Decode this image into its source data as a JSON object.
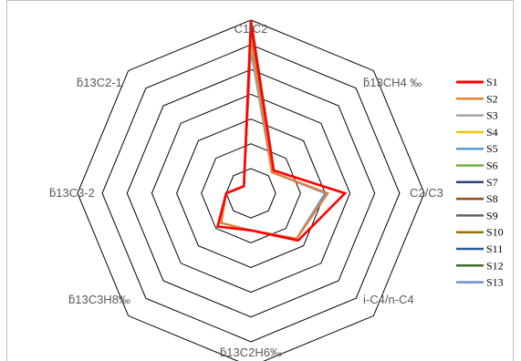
{
  "chart_data": {
    "type": "radar",
    "title": "",
    "axes": [
      "C1/C2",
      "ƃ13CH4 ‰",
      "C2/C3",
      "i-C4/n-C4",
      "ƃ13C2H6‰",
      "ƃ13C3H8‰",
      "ƃ13C3-2",
      "ƃ13C2-1"
    ],
    "rmax": 7,
    "ring_count": 7,
    "grid": true,
    "legend_position": "right",
    "series": [
      {
        "name": "S1",
        "color": "#ff0000",
        "width": 2.6,
        "values": [
          7.0,
          1.3,
          3.8,
          2.7,
          1.5,
          1.9,
          1.0,
          0.4
        ]
      },
      {
        "name": "S2",
        "color": "#ed7d31",
        "width": 2.0,
        "values": [
          6.3,
          1.2,
          3.1,
          2.6,
          1.5,
          1.7,
          1.0,
          0.4
        ]
      },
      {
        "name": "S3",
        "color": "#a5a5a5",
        "width": 2.0,
        "values": [
          6.2,
          1.2,
          3.1,
          2.6,
          1.5,
          1.7,
          1.0,
          0.4
        ]
      },
      {
        "name": "S4",
        "color": "#ffc000",
        "width": 2.0,
        "values": [
          6.1,
          1.2,
          3.1,
          2.6,
          1.5,
          1.7,
          1.0,
          0.4
        ]
      },
      {
        "name": "S5",
        "color": "#5b9bd5",
        "width": 2.0,
        "values": [
          6.0,
          1.2,
          3.0,
          2.6,
          1.5,
          1.7,
          1.0,
          0.4
        ]
      },
      {
        "name": "S6",
        "color": "#70ad47",
        "width": 2.0,
        "values": [
          6.1,
          1.2,
          3.1,
          2.6,
          1.5,
          1.7,
          1.0,
          0.4
        ]
      },
      {
        "name": "S7",
        "color": "#264478",
        "width": 2.0,
        "values": [
          6.2,
          1.2,
          3.1,
          2.6,
          1.5,
          1.7,
          1.0,
          0.4
        ]
      },
      {
        "name": "S8",
        "color": "#9e480e",
        "width": 2.0,
        "values": [
          6.1,
          1.2,
          3.1,
          2.6,
          1.5,
          1.7,
          1.0,
          0.4
        ]
      },
      {
        "name": "S9",
        "color": "#636363",
        "width": 2.0,
        "values": [
          6.2,
          1.2,
          3.1,
          2.6,
          1.5,
          1.7,
          1.0,
          0.4
        ]
      },
      {
        "name": "S10",
        "color": "#997300",
        "width": 2.0,
        "values": [
          6.2,
          1.2,
          3.1,
          2.6,
          1.5,
          1.7,
          1.0,
          0.4
        ]
      },
      {
        "name": "S11",
        "color": "#255e91",
        "width": 2.0,
        "values": [
          6.1,
          1.2,
          3.1,
          2.6,
          1.5,
          1.7,
          1.0,
          0.4
        ]
      },
      {
        "name": "S12",
        "color": "#43682b",
        "width": 2.2,
        "values": [
          6.6,
          1.2,
          3.1,
          2.6,
          1.5,
          1.7,
          1.0,
          0.4
        ]
      },
      {
        "name": "S13",
        "color": "#698ed0",
        "width": 2.2,
        "values": [
          5.8,
          1.2,
          3.0,
          2.6,
          1.5,
          1.7,
          1.0,
          0.4
        ]
      }
    ]
  }
}
